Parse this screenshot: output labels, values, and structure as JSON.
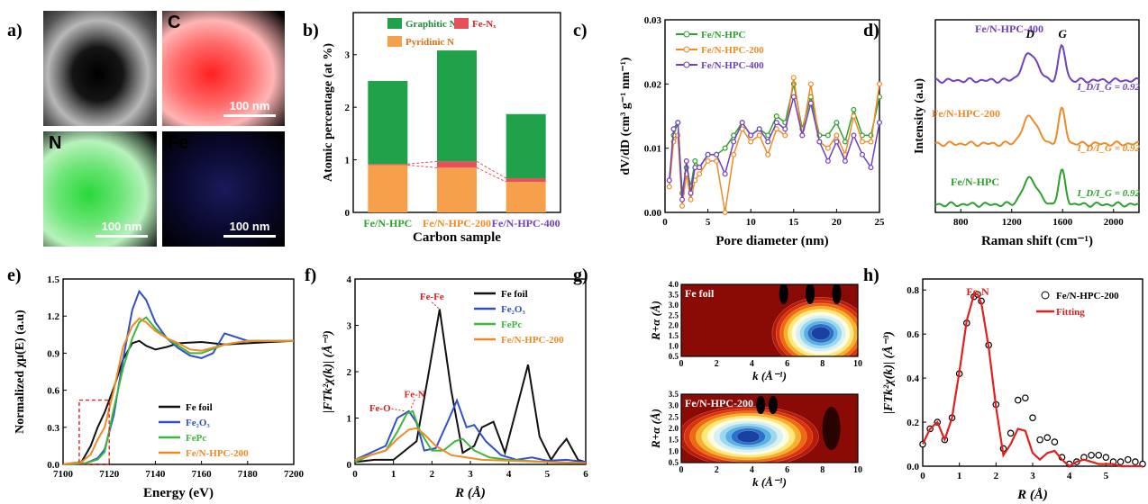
{
  "panel_letters": [
    "a)",
    "b)",
    "c)",
    "d)",
    "e)",
    "f)",
    "g)",
    "h)"
  ],
  "colors": {
    "fe_nhpc": "#2ca02c",
    "fe_nhpc200": "#f08a24",
    "fe_nhpc400": "#7040c0",
    "fe_foil": "#111111",
    "fe2o3": "#3050c8",
    "fepc": "#3cb83c",
    "fitting": "#e02020",
    "graphitic_n": "#1fa24a",
    "pyridinic_n": "#f7a04b",
    "fe_nx": "#e6505a",
    "annotation_red": "#e02020"
  },
  "panel_a": {
    "maps": [
      {
        "label": "",
        "color": "#c8c8c8",
        "scale": ""
      },
      {
        "label": "C",
        "color": "#ff2020",
        "scale": "100 nm"
      },
      {
        "label": "N",
        "color": "#28d838",
        "scale": "100 nm"
      },
      {
        "label": "Fe",
        "color": "#4040ff",
        "scale": "100 nm"
      }
    ]
  },
  "chart_data": [
    {
      "panel": "b",
      "type": "bar",
      "categories": [
        "Fe/N-HPC",
        "Fe/N-HPC-200",
        "Fe/N-HPC-400"
      ],
      "category_colors": [
        "#2ca02c",
        "#f08a24",
        "#7040c0"
      ],
      "series": [
        {
          "name": "Pyridinic N",
          "values": [
            0.9,
            0.85,
            0.58
          ]
        },
        {
          "name": "Fe-Nₓ",
          "values": [
            0.02,
            0.12,
            0.07
          ]
        },
        {
          "name": "Graphitic N",
          "values": [
            1.58,
            2.11,
            1.22
          ]
        }
      ],
      "xlabel": "Carbon sample",
      "ylabel": "Atomic percentage (at %)",
      "ylim": [
        0,
        3.8
      ],
      "yticks": [
        "0",
        "1",
        "2",
        "3"
      ],
      "legend": "top"
    },
    {
      "panel": "c",
      "type": "line",
      "xlabel": "Pore diameter (nm)",
      "ylabel": "dV/dD (cm³ g⁻¹ nm⁻¹)",
      "xlim": [
        0,
        25
      ],
      "ylim": [
        0,
        0.03
      ],
      "xticks": [
        "0",
        "5",
        "10",
        "15",
        "20",
        "25"
      ],
      "yticks": [
        "0.00",
        "0.01",
        "0.02",
        "0.03"
      ],
      "legend": "top-left",
      "series": [
        {
          "name": "Fe/N-HPC",
          "x": [
            0.5,
            1,
            1.5,
            2,
            2.5,
            3,
            3.5,
            4,
            5,
            6,
            7,
            8,
            9,
            10,
            11,
            12,
            13,
            14,
            15,
            16,
            17,
            18,
            19,
            20,
            21,
            22,
            23,
            24,
            25
          ],
          "y": [
            0.005,
            0.012,
            0.014,
            0.003,
            0.007,
            0.004,
            0.008,
            0.007,
            0.009,
            0.009,
            0.01,
            0.012,
            0.014,
            0.012,
            0.013,
            0.012,
            0.015,
            0.014,
            0.02,
            0.013,
            0.018,
            0.012,
            0.012,
            0.014,
            0.011,
            0.016,
            0.012,
            0.012,
            0.018
          ]
        },
        {
          "name": "Fe/N-HPC-200",
          "x": [
            0.5,
            1,
            1.5,
            2,
            2.5,
            3,
            3.5,
            4,
            5,
            6,
            7,
            8,
            9,
            10,
            11,
            12,
            13,
            14,
            15,
            16,
            17,
            18,
            19,
            20,
            21,
            22,
            23,
            24,
            25
          ],
          "y": [
            0.004,
            0.011,
            0.012,
            0.001,
            0.006,
            0.002,
            0.005,
            0.006,
            0.008,
            0.008,
            0.0,
            0.009,
            0.013,
            0.011,
            0.012,
            0.009,
            0.013,
            0.012,
            0.021,
            0.012,
            0.02,
            0.011,
            0.01,
            0.012,
            0.009,
            0.015,
            0.011,
            0.011,
            0.02
          ]
        },
        {
          "name": "Fe/N-HPC-400",
          "x": [
            0.5,
            1,
            1.5,
            2,
            2.5,
            3,
            3.5,
            4,
            5,
            6,
            7,
            8,
            9,
            10,
            11,
            12,
            13,
            14,
            15,
            16,
            17,
            18,
            19,
            20,
            21,
            22,
            23,
            24,
            25
          ],
          "y": [
            0.005,
            0.013,
            0.014,
            0.002,
            0.008,
            0.003,
            0.007,
            0.007,
            0.009,
            0.009,
            0.006,
            0.011,
            0.014,
            0.012,
            0.013,
            0.011,
            0.014,
            0.013,
            0.018,
            0.012,
            0.017,
            0.011,
            0.008,
            0.011,
            0.008,
            0.012,
            0.009,
            0.007,
            0.014
          ]
        }
      ]
    },
    {
      "panel": "d",
      "type": "line",
      "xlabel": "Raman shift (cm⁻¹)",
      "ylabel": "Intensity (a.u)",
      "xlim": [
        600,
        2200
      ],
      "xticks": [
        "800",
        "1200",
        "1600",
        "2000"
      ],
      "peak_labels": [
        "D",
        "G"
      ],
      "ratio_text": "I_D/I_G = 0.92",
      "series": [
        {
          "name": "Fe/N-HPC",
          "offset": 0,
          "D": 1.0,
          "G": 1.25
        },
        {
          "name": "Fe/N-HPC-200",
          "offset": 2.3,
          "D": 1.05,
          "G": 1.3
        },
        {
          "name": "Fe/N-HPC-400",
          "offset": 4.7,
          "D": 1.05,
          "G": 1.3
        }
      ]
    },
    {
      "panel": "e",
      "type": "line",
      "xlabel": "Energy (eV)",
      "ylabel": "Normalized χμ(E) (a.u)",
      "xlim": [
        7100,
        7200
      ],
      "ylim": [
        0,
        1.5
      ],
      "xticks": [
        "7100",
        "7120",
        "7140",
        "7160",
        "7180",
        "7200"
      ],
      "yticks": [
        "0.0",
        "0.3",
        "0.6",
        "0.9",
        "1.2",
        "1.5"
      ],
      "legend": "bottom-left",
      "series": [
        {
          "name": "Fe foil",
          "x": [
            7100,
            7108,
            7112,
            7115,
            7118,
            7122,
            7126,
            7130,
            7133,
            7136,
            7140,
            7145,
            7150,
            7160,
            7170,
            7180,
            7190,
            7200
          ],
          "y": [
            0,
            0.02,
            0.15,
            0.3,
            0.42,
            0.62,
            0.85,
            0.98,
            1.0,
            0.96,
            0.93,
            0.95,
            0.98,
            0.99,
            0.97,
            0.98,
            0.99,
            1.0
          ]
        },
        {
          "name": "Fe₂O₃",
          "x": [
            7100,
            7110,
            7115,
            7118,
            7122,
            7126,
            7130,
            7133,
            7136,
            7140,
            7145,
            7150,
            7155,
            7160,
            7165,
            7170,
            7180,
            7190,
            7200
          ],
          "y": [
            0,
            0.01,
            0.05,
            0.12,
            0.4,
            0.85,
            1.25,
            1.4,
            1.33,
            1.15,
            1.02,
            0.94,
            0.88,
            0.86,
            0.9,
            1.06,
            1.0,
            1.0,
            1.0
          ]
        },
        {
          "name": "FePc",
          "x": [
            7100,
            7110,
            7115,
            7118,
            7122,
            7126,
            7130,
            7133,
            7136,
            7140,
            7145,
            7150,
            7155,
            7160,
            7170,
            7180,
            7190,
            7200
          ],
          "y": [
            0,
            0.01,
            0.04,
            0.1,
            0.45,
            0.78,
            1.02,
            1.15,
            1.19,
            1.1,
            1.02,
            0.96,
            0.9,
            0.9,
            0.97,
            1.0,
            1.0,
            1.0
          ]
        },
        {
          "name": "Fe/N-HPC-200",
          "x": [
            7100,
            7108,
            7112,
            7115,
            7118,
            7122,
            7126,
            7130,
            7133,
            7136,
            7140,
            7145,
            7150,
            7155,
            7160,
            7170,
            7180,
            7190,
            7200
          ],
          "y": [
            0,
            0.02,
            0.08,
            0.2,
            0.3,
            0.6,
            0.95,
            1.12,
            1.18,
            1.15,
            1.08,
            1.02,
            0.98,
            0.93,
            0.92,
            0.97,
            1.0,
            1.0,
            1.0
          ]
        }
      ],
      "inset_box": {
        "x": [
          7107,
          7120
        ],
        "y": [
          0,
          0.52
        ]
      }
    },
    {
      "panel": "f",
      "type": "line",
      "xlabel": "R (Å)",
      "ylabel": "|FTk²χ(k)| (Å⁻³)",
      "xlim": [
        0,
        6
      ],
      "ylim": [
        0,
        4
      ],
      "xticks": [
        "0",
        "1",
        "2",
        "3",
        "4",
        "5",
        "6"
      ],
      "yticks": [
        "0",
        "1",
        "2",
        "3",
        "4"
      ],
      "legend": "top-right",
      "annotations": [
        "Fe-Fe",
        "Fe-N",
        "Fe-O"
      ],
      "series": [
        {
          "name": "Fe foil",
          "x": [
            0,
            0.5,
            1,
            1.3,
            1.6,
            1.9,
            2.2,
            2.5,
            2.8,
            3.1,
            3.3,
            3.6,
            3.9,
            4.2,
            4.5,
            4.8,
            5.1,
            5.3,
            5.5,
            5.8,
            6
          ],
          "y": [
            0.05,
            0.1,
            0.1,
            0.3,
            0.5,
            1.9,
            3.35,
            1.6,
            0.25,
            0.4,
            0.8,
            0.92,
            0.25,
            1.2,
            2.15,
            0.6,
            0.1,
            0.35,
            0.55,
            0.1,
            0.05
          ]
        },
        {
          "name": "Fe₂O₃",
          "x": [
            0,
            0.4,
            0.8,
            1.1,
            1.4,
            1.6,
            1.8,
            2.1,
            2.4,
            2.65,
            2.9,
            3.1,
            3.4,
            3.8,
            4.2,
            4.6,
            5,
            5.5,
            6
          ],
          "y": [
            0.1,
            0.25,
            0.4,
            1.0,
            1.15,
            0.9,
            0.3,
            0.35,
            0.9,
            1.38,
            0.8,
            0.85,
            0.5,
            0.2,
            0.1,
            0.15,
            0.08,
            0.1,
            0.05
          ]
        },
        {
          "name": "FePc",
          "x": [
            0,
            0.4,
            0.8,
            1.1,
            1.35,
            1.5,
            1.7,
            2.0,
            2.3,
            2.6,
            2.8,
            3.1,
            3.5,
            4,
            5,
            6
          ],
          "y": [
            0.05,
            0.2,
            0.3,
            0.7,
            1.1,
            1.15,
            0.7,
            0.3,
            0.3,
            0.5,
            0.55,
            0.3,
            0.15,
            0.1,
            0.05,
            0.03
          ]
        },
        {
          "name": "Fe/N-HPC-200",
          "x": [
            0,
            0.4,
            0.8,
            1.1,
            1.4,
            1.6,
            1.8,
            2.1,
            2.5,
            2.9,
            3.3,
            4,
            5,
            6
          ],
          "y": [
            0.1,
            0.2,
            0.3,
            0.55,
            0.75,
            0.78,
            0.65,
            0.4,
            0.2,
            0.15,
            0.1,
            0.08,
            0.05,
            0.03
          ]
        }
      ]
    },
    {
      "panel": "g",
      "type": "heatmap",
      "maps": [
        {
          "name": "Fe foil",
          "xlabel": "k (Å⁻¹)",
          "ylabel": "R+α (Å)",
          "xlim": [
            0,
            10
          ],
          "ylim": [
            0.5,
            4.0
          ],
          "yticks": [
            "0.5",
            "1.0",
            "1.5",
            "2.0",
            "2.5",
            "3.0",
            "3.5",
            "4.0"
          ],
          "xticks": [
            "0",
            "2",
            "4",
            "6",
            "8",
            "10"
          ]
        },
        {
          "name": "Fe/N-HPC-200",
          "xlabel": "k (Å⁻¹)",
          "ylabel": "R+α (Å)",
          "xlim": [
            0,
            10
          ],
          "ylim": [
            0.5,
            3.5
          ],
          "yticks": [
            "0.5",
            "1.0",
            "1.5",
            "2.0",
            "2.5",
            "3.0",
            "3.5"
          ],
          "xticks": [
            "0",
            "2",
            "4",
            "6",
            "8",
            "10"
          ]
        }
      ]
    },
    {
      "panel": "h",
      "type": "line",
      "xlabel": "R (Å)",
      "ylabel": "|FTk²χ(k)| (Å⁻³)",
      "xlim": [
        0,
        6
      ],
      "ylim": [
        0,
        0.85
      ],
      "xticks": [
        "0",
        "1",
        "2",
        "3",
        "4",
        "5"
      ],
      "yticks": [
        "0.0",
        "0.2",
        "0.4",
        "0.6",
        "0.8"
      ],
      "legend": "top-right",
      "annotations": [
        "Fe-N"
      ],
      "series": [
        {
          "name": "Fe/N-HPC-200",
          "style": "circles",
          "x": [
            0,
            0.2,
            0.4,
            0.6,
            0.8,
            1.0,
            1.2,
            1.4,
            1.5,
            1.6,
            1.8,
            2.0,
            2.2,
            2.4,
            2.6,
            2.8,
            3.0,
            3.2,
            3.4,
            3.6,
            3.8,
            4.0,
            4.2,
            4.4,
            4.6,
            4.8,
            5.0,
            5.2,
            5.4,
            5.6,
            5.8,
            6.0
          ],
          "y": [
            0.1,
            0.17,
            0.2,
            0.12,
            0.22,
            0.42,
            0.65,
            0.77,
            0.78,
            0.75,
            0.55,
            0.28,
            0.08,
            0.15,
            0.3,
            0.31,
            0.22,
            0.12,
            0.13,
            0.11,
            0.04,
            0.01,
            0.02,
            0.04,
            0.05,
            0.05,
            0.04,
            0.02,
            0.02,
            0.03,
            0.02,
            0.01
          ]
        },
        {
          "name": "Fitting",
          "style": "line",
          "x": [
            0,
            0.2,
            0.4,
            0.6,
            0.8,
            1.0,
            1.2,
            1.4,
            1.5,
            1.6,
            1.8,
            2.0,
            2.2,
            2.4,
            2.6,
            2.8,
            3.0,
            3.2,
            3.4,
            3.6,
            3.8,
            4.0,
            4.2,
            4.4,
            4.6,
            4.8,
            5.0,
            5.2,
            5.4,
            5.6,
            5.8,
            6.0
          ],
          "y": [
            0.1,
            0.17,
            0.2,
            0.12,
            0.22,
            0.43,
            0.66,
            0.78,
            0.78,
            0.74,
            0.54,
            0.27,
            0.05,
            0.1,
            0.17,
            0.16,
            0.06,
            0.03,
            0.06,
            0.07,
            0.03,
            0.0,
            0.02,
            0.03,
            0.02,
            0.01,
            0.01,
            0.01,
            0.0,
            0.0,
            0.0,
            0.0
          ]
        }
      ]
    }
  ]
}
